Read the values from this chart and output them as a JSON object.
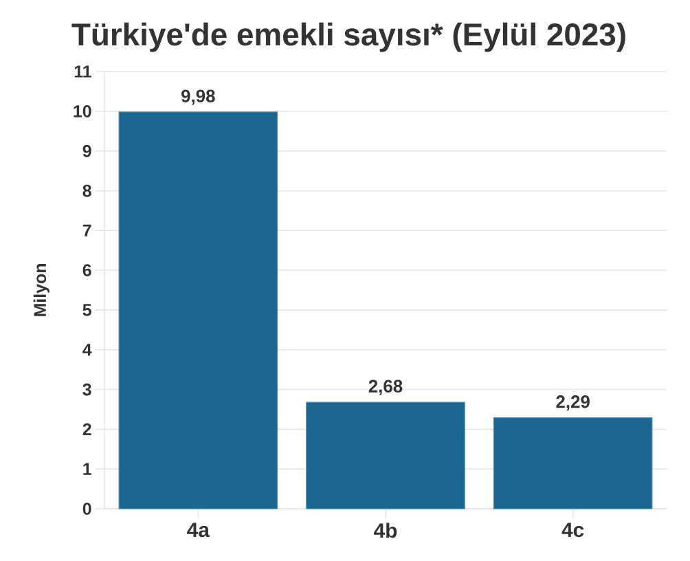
{
  "chart_data": {
    "type": "bar",
    "title": "Türkiye'de emekli sayısı* (Eylül 2023)",
    "ylabel": "Milyon",
    "categories": [
      "4a",
      "4b",
      "4c"
    ],
    "values": [
      9.98,
      2.68,
      2.29
    ],
    "value_labels": [
      "9,98",
      "2,68",
      "2,29"
    ],
    "color": "#1b6690",
    "ylim": [
      0,
      11
    ],
    "yticks": [
      0,
      1,
      2,
      3,
      4,
      5,
      6,
      7,
      8,
      9,
      10,
      11
    ],
    "grid": "y"
  }
}
